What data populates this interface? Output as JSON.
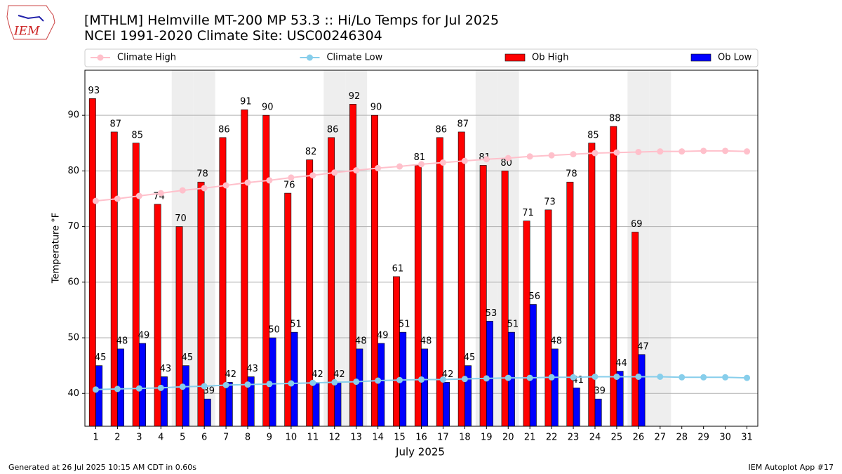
{
  "chart_data": {
    "type": "bar",
    "title": "[MTHLM] Helmville MT-200 MP 53.3  :: Hi/Lo Temps for Jul 2025",
    "subtitle": "NCEI 1991-2020 Climate Site: USC00246304",
    "logo_text": "IEM",
    "x_label": "July 2025",
    "y_label": "Temperature °F",
    "footer_left": "Generated at 26 Jul 2025 10:15 AM CDT in 0.60s",
    "footer_right": "IEM Autoplot App #17",
    "categories": [
      "1",
      "2",
      "3",
      "4",
      "5",
      "6",
      "7",
      "8",
      "9",
      "10",
      "11",
      "12",
      "13",
      "14",
      "15",
      "16",
      "17",
      "18",
      "19",
      "20",
      "21",
      "22",
      "23",
      "24",
      "25",
      "26",
      "27",
      "28",
      "29",
      "30",
      "31"
    ],
    "shaded_days": [
      5,
      6,
      12,
      13,
      19,
      20,
      26,
      27
    ],
    "ylim": [
      34.1,
      98.1
    ],
    "yticks": [
      40,
      50,
      60,
      70,
      80,
      90
    ],
    "grid": true,
    "series": [
      {
        "name": "Climate High",
        "type": "line",
        "color": "#ffc0cb",
        "values": [
          74.6,
          75.0,
          75.5,
          76.0,
          76.5,
          76.9,
          77.4,
          77.9,
          78.3,
          78.8,
          79.2,
          79.7,
          80.1,
          80.5,
          80.8,
          81.2,
          81.5,
          81.8,
          82.1,
          82.3,
          82.6,
          82.8,
          83.0,
          83.2,
          83.3,
          83.4,
          83.5,
          83.5,
          83.6,
          83.6,
          83.5
        ]
      },
      {
        "name": "Climate Low",
        "type": "line",
        "color": "#87ceeb",
        "values": [
          40.7,
          40.8,
          40.9,
          41.0,
          41.2,
          41.3,
          41.5,
          41.6,
          41.7,
          41.8,
          41.9,
          42.0,
          42.1,
          42.3,
          42.4,
          42.5,
          42.5,
          42.6,
          42.7,
          42.8,
          42.8,
          42.9,
          42.9,
          43.0,
          43.0,
          43.0,
          43.0,
          42.9,
          42.9,
          42.9,
          42.8
        ]
      },
      {
        "name": "Ob High",
        "type": "bar",
        "color": "#ff0000",
        "values": [
          93,
          87,
          85,
          74,
          70,
          78,
          86,
          91,
          90,
          76,
          82,
          86,
          92,
          90,
          61,
          81,
          86,
          87,
          81,
          80,
          71,
          73,
          78,
          85,
          88,
          69,
          null,
          null,
          null,
          null,
          null
        ]
      },
      {
        "name": "Ob Low",
        "type": "bar",
        "color": "#0000ff",
        "values": [
          45,
          48,
          49,
          43,
          45,
          39,
          42,
          43,
          50,
          51,
          42,
          42,
          48,
          49,
          51,
          48,
          42,
          45,
          53,
          51,
          56,
          48,
          41,
          39,
          44,
          47,
          null,
          null,
          null,
          null,
          null
        ]
      }
    ]
  }
}
